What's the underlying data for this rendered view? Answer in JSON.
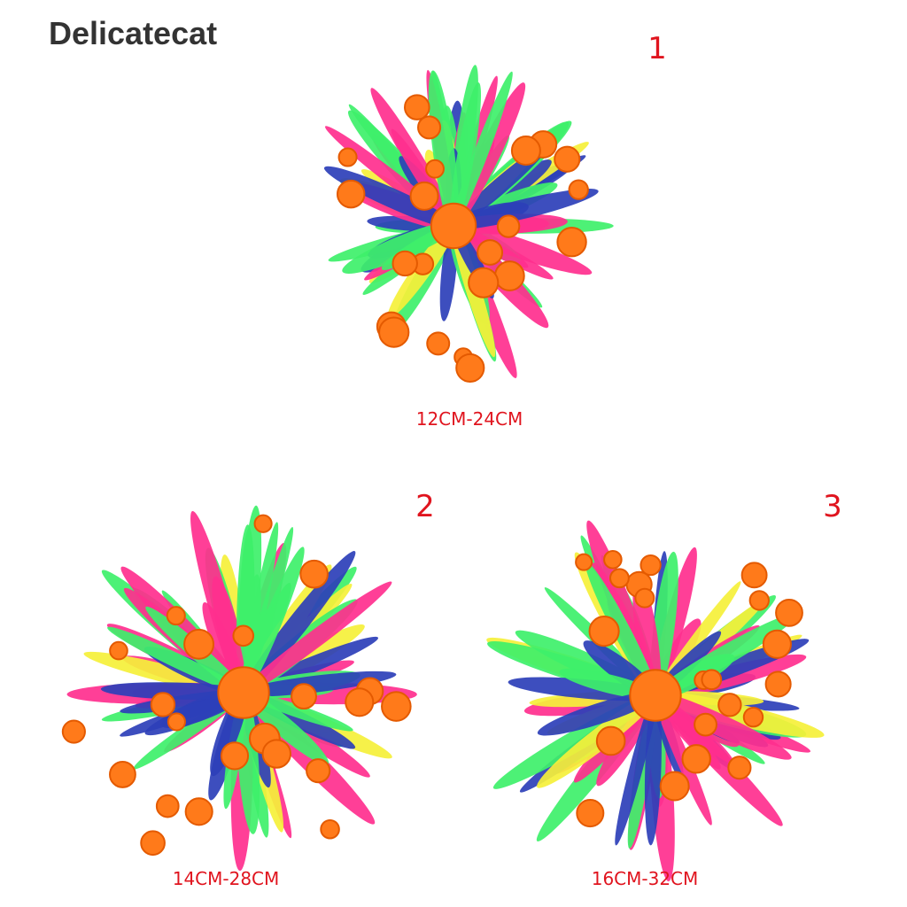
{
  "brand": "Delicatecat",
  "items": [
    {
      "number": "1",
      "size": "12CM-24CM"
    },
    {
      "number": "2",
      "size": "14CM-28CM"
    },
    {
      "number": "3",
      "size": "16CM-32CM"
    }
  ]
}
